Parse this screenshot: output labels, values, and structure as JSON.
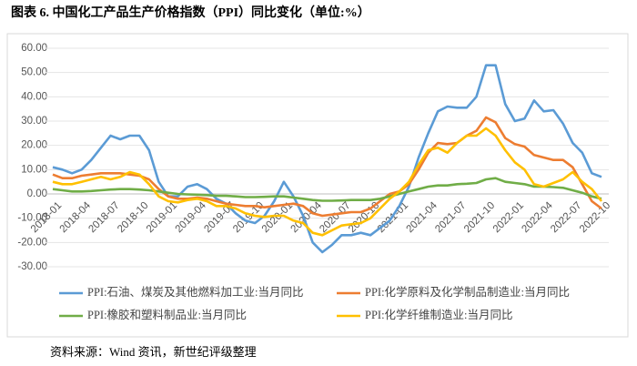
{
  "chart_data": {
    "type": "line",
    "title": "图表 6.   中国化工产品生产价格指数（PPI）同比变化（单位:%）",
    "source": "资料来源：Wind 资讯，新世纪评级整理",
    "categories": [
      "2018-01",
      null,
      null,
      "2018-04",
      null,
      null,
      "2018-07",
      null,
      null,
      "2018-10",
      null,
      null,
      "2019-01",
      null,
      null,
      "2019-04",
      null,
      null,
      "2019-07",
      null,
      null,
      "2019-10",
      null,
      null,
      "2020-01",
      null,
      null,
      "2020-04",
      null,
      null,
      "2020-07",
      null,
      null,
      "2020-10",
      null,
      null,
      "2021-01",
      null,
      null,
      "2021-04",
      null,
      null,
      "2021-07",
      null,
      null,
      "2021-10",
      null,
      null,
      "2022-01",
      null,
      null,
      "2022-04",
      null,
      null,
      "2022-07",
      null,
      null,
      "2022-10"
    ],
    "ylim": [
      -30,
      60
    ],
    "yticks": [
      {
        "value": -30,
        "label": "-30.00"
      },
      {
        "value": -20,
        "label": "-20.00"
      },
      {
        "value": -10,
        "label": "-10.00"
      },
      {
        "value": 0,
        "label": "0.00"
      },
      {
        "value": 10,
        "label": "10.00"
      },
      {
        "value": 20,
        "label": "20.00"
      },
      {
        "value": 30,
        "label": "30.00"
      },
      {
        "value": 40,
        "label": "40.00"
      },
      {
        "value": 50,
        "label": "50.00"
      },
      {
        "value": 60,
        "label": "60.00"
      }
    ],
    "grid": true,
    "legend": "bottom",
    "series": [
      {
        "name": "PPI:石油、煤炭及其他燃料加工业:当月同比",
        "color": "#5b9bd5",
        "values": [
          11,
          10,
          8.5,
          10,
          14,
          19,
          24,
          22.5,
          24,
          24,
          18,
          5,
          -1,
          -1,
          3,
          4,
          2,
          -2,
          -4,
          -8,
          -11,
          -12,
          -9,
          -3,
          5,
          -1,
          -9,
          -20,
          -24,
          -21,
          -17,
          -17,
          -16,
          -17,
          -14,
          -11,
          -5,
          3,
          15,
          25,
          34,
          36,
          35.5,
          35.5,
          40,
          53,
          53,
          37,
          30,
          31,
          38.5,
          34,
          34.5,
          29,
          21,
          17,
          8.5,
          7
        ]
      },
      {
        "name": "PPI:化学原料及化学制品制造业:当月同比",
        "color": "#ed7d31",
        "values": [
          8,
          6.5,
          6.5,
          7.5,
          8,
          8.5,
          8.5,
          8.5,
          8,
          7.5,
          6,
          2,
          -1,
          -2,
          -2,
          -1.5,
          -2,
          -3,
          -4,
          -4.5,
          -5,
          -5,
          -5.5,
          -5,
          -4.5,
          -4,
          -5,
          -8,
          -9,
          -8.5,
          -8,
          -7.5,
          -7.5,
          -6,
          -3,
          0,
          1,
          4,
          10,
          17,
          21,
          20.5,
          21,
          24,
          26,
          31.5,
          29.5,
          23,
          20.5,
          19.5,
          16,
          15,
          14,
          14,
          11,
          4,
          -3,
          -6
        ]
      },
      {
        "name": "PPI:橡胶和塑料制品业:当月同比",
        "color": "#70ad47",
        "values": [
          2,
          1.5,
          1,
          1,
          1.2,
          1.5,
          1.8,
          2,
          2,
          1.8,
          1.5,
          1,
          0.5,
          0,
          -0.2,
          -0.3,
          -0.5,
          -0.8,
          -0.8,
          -1,
          -1.3,
          -1.3,
          -1.2,
          -1,
          -1,
          -1.5,
          -2,
          -2.5,
          -2.8,
          -2.8,
          -2.7,
          -2.5,
          -2.5,
          -2.5,
          -2,
          -1,
          0,
          1,
          2,
          3,
          3.5,
          3.5,
          4,
          4.2,
          4.5,
          6,
          6.5,
          5,
          4.5,
          4,
          3,
          3,
          2.8,
          2.5,
          1.5,
          0.5,
          -1,
          -2
        ]
      },
      {
        "name": "PPI:化学纤维制造业:当月同比",
        "color": "#ffc000",
        "values": [
          5,
          4,
          4,
          5,
          6,
          7,
          6,
          7,
          9,
          8,
          4,
          -1,
          -3,
          -3.5,
          -2.5,
          -2,
          -3,
          -5,
          -5,
          -6,
          -8,
          -9,
          -9.5,
          -9,
          -9,
          -11,
          -12,
          -16,
          -17,
          -15,
          -13,
          -12.5,
          -12,
          -10,
          -6,
          -2,
          1,
          5,
          12,
          18,
          19,
          17,
          21,
          24,
          24,
          27,
          24,
          18,
          13,
          10,
          4,
          3,
          4.5,
          6,
          9,
          5,
          2,
          -3
        ]
      }
    ]
  }
}
